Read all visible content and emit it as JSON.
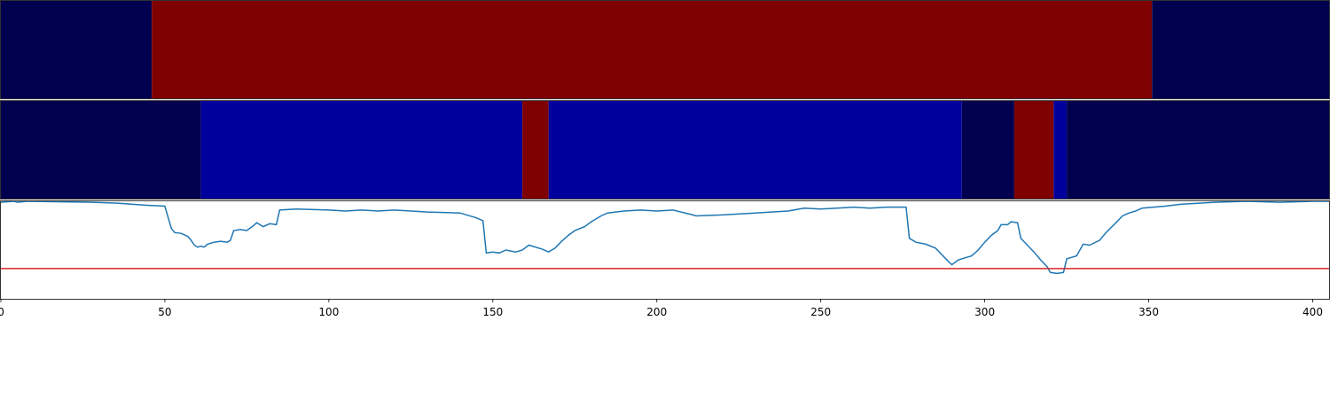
{
  "chart_data": {
    "type": "heatmap",
    "xlim": [
      0,
      405
    ],
    "x_ticks": [
      0,
      50,
      100,
      150,
      200,
      250,
      300,
      350,
      400
    ],
    "x_tick_labels": [
      "0",
      "50",
      "100",
      "150",
      "200",
      "250",
      "300",
      "350",
      "400"
    ],
    "panels": [
      {
        "type": "heatmap",
        "segments": [
          {
            "start": 0,
            "end": 46,
            "color": "#00004f"
          },
          {
            "start": 46,
            "end": 351,
            "color": "#7f0000"
          },
          {
            "start": 351,
            "end": 405,
            "color": "#00004f"
          }
        ]
      },
      {
        "type": "heatmap",
        "segments": [
          {
            "start": 0,
            "end": 61,
            "color": "#00004f"
          },
          {
            "start": 61,
            "end": 159,
            "color": "#00009c"
          },
          {
            "start": 159,
            "end": 167,
            "color": "#7f0000"
          },
          {
            "start": 167,
            "end": 293,
            "color": "#00009c"
          },
          {
            "start": 293,
            "end": 309,
            "color": "#00004f"
          },
          {
            "start": 309,
            "end": 321,
            "color": "#7f0000"
          },
          {
            "start": 321,
            "end": 325,
            "color": "#00009c"
          },
          {
            "start": 325,
            "end": 405,
            "color": "#00004f"
          }
        ]
      },
      {
        "type": "line",
        "ylim": [
          0,
          1
        ],
        "threshold": {
          "value": 0.31,
          "color": "#d62728"
        },
        "series": [
          {
            "color": "#1f77b4",
            "x": [
              0,
              4,
              5,
              8,
              28,
              36,
              44,
              50,
              52,
              53,
              55,
              57,
              58,
              59,
              60,
              61,
              62,
              63,
              65,
              67,
              69,
              70,
              71,
              73,
              75,
              77,
              78,
              80,
              82,
              84,
              85,
              90,
              100,
              105,
              110,
              115,
              120,
              130,
              140,
              145,
              147,
              148,
              150,
              152,
              154,
              157,
              159,
              161,
              165,
              167,
              169,
              171,
              173,
              175,
              178,
              180,
              183,
              185,
              190,
              195,
              200,
              205,
              211,
              212,
              220,
              230,
              240,
              245,
              250,
              255,
              260,
              265,
              270,
              276,
              277,
              279,
              282,
              285,
              287,
              289,
              290,
              292,
              294,
              296,
              298,
              300,
              302,
              304,
              305,
              307,
              308,
              310,
              311,
              313,
              315,
              317,
              319,
              320,
              322,
              324,
              325,
              327,
              328,
              330,
              332,
              335,
              337,
              340,
              342,
              344,
              346,
              348,
              355,
              360,
              365,
              370,
              380,
              390,
              400,
              405
            ],
            "y": [
              0.99,
              1.0,
              0.99,
              1.0,
              0.99,
              0.98,
              0.96,
              0.95,
              0.72,
              0.68,
              0.67,
              0.64,
              0.6,
              0.55,
              0.53,
              0.54,
              0.53,
              0.56,
              0.58,
              0.59,
              0.58,
              0.6,
              0.7,
              0.71,
              0.7,
              0.75,
              0.78,
              0.74,
              0.77,
              0.76,
              0.91,
              0.92,
              0.91,
              0.9,
              0.91,
              0.9,
              0.91,
              0.89,
              0.88,
              0.83,
              0.8,
              0.47,
              0.48,
              0.47,
              0.5,
              0.48,
              0.5,
              0.55,
              0.51,
              0.48,
              0.52,
              0.59,
              0.65,
              0.7,
              0.74,
              0.79,
              0.85,
              0.88,
              0.9,
              0.91,
              0.9,
              0.91,
              0.86,
              0.85,
              0.86,
              0.88,
              0.9,
              0.93,
              0.92,
              0.93,
              0.94,
              0.93,
              0.94,
              0.94,
              0.62,
              0.58,
              0.56,
              0.52,
              0.45,
              0.38,
              0.35,
              0.4,
              0.42,
              0.44,
              0.5,
              0.58,
              0.65,
              0.7,
              0.76,
              0.76,
              0.79,
              0.78,
              0.62,
              0.55,
              0.48,
              0.4,
              0.33,
              0.27,
              0.26,
              0.27,
              0.41,
              0.43,
              0.44,
              0.56,
              0.55,
              0.6,
              0.68,
              0.78,
              0.85,
              0.88,
              0.9,
              0.93,
              0.95,
              0.97,
              0.98,
              0.99,
              1.0,
              0.99,
              1.0,
              1.0
            ]
          }
        ]
      }
    ]
  }
}
